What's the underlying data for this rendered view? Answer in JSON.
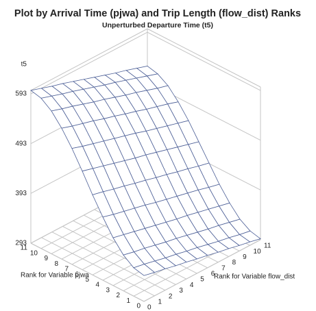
{
  "chart_data": {
    "type": "surface",
    "title": "Plot by Arrival Time (pjwa) and Trip Length (flow_dist) Ranks",
    "subtitle": "Unperturbed Departure Time (t5)",
    "xlabel": "Rank for Variable flow_dist",
    "ylabel": "Rank for Variable pjwa",
    "zlabel": "t5",
    "x": [
      0,
      1,
      2,
      3,
      4,
      5,
      6,
      7,
      8,
      9,
      10,
      11
    ],
    "y": [
      0,
      1,
      2,
      3,
      4,
      5,
      6,
      7,
      8,
      9,
      10,
      11
    ],
    "xlim": [
      0,
      11
    ],
    "ylim": [
      0,
      11
    ],
    "zlim": [
      293,
      600
    ],
    "zticks": [
      293,
      393,
      493,
      593
    ],
    "color": "#4b5e96",
    "z": [
      [
        345,
        340,
        336,
        331,
        327,
        322,
        318,
        313,
        309,
        304,
        300,
        295
      ],
      [
        350,
        346,
        341,
        336,
        332,
        327,
        323,
        318,
        313,
        309,
        304,
        300
      ],
      [
        365,
        360,
        356,
        351,
        346,
        342,
        337,
        332,
        327,
        323,
        318,
        313
      ],
      [
        389,
        384,
        379,
        374,
        369,
        364,
        359,
        355,
        350,
        345,
        340,
        335
      ],
      [
        420,
        414,
        409,
        404,
        399,
        393,
        388,
        383,
        378,
        373,
        367,
        362
      ],
      [
        454,
        449,
        443,
        438,
        432,
        427,
        421,
        416,
        410,
        405,
        399,
        394
      ],
      [
        491,
        485,
        479,
        473,
        467,
        461,
        456,
        450,
        444,
        438,
        432,
        426
      ],
      [
        526,
        519,
        513,
        507,
        501,
        495,
        489,
        482,
        476,
        470,
        464,
        458
      ],
      [
        556,
        549,
        543,
        537,
        530,
        524,
        517,
        511,
        504,
        498,
        492,
        485
      ],
      [
        580,
        573,
        567,
        560,
        553,
        547,
        540,
        533,
        527,
        520,
        513,
        507
      ],
      [
        595,
        588,
        581,
        575,
        568,
        561,
        554,
        548,
        541,
        534,
        527,
        520
      ],
      [
        600,
        593,
        586,
        580,
        573,
        566,
        559,
        552,
        545,
        539,
        532,
        525
      ]
    ]
  }
}
